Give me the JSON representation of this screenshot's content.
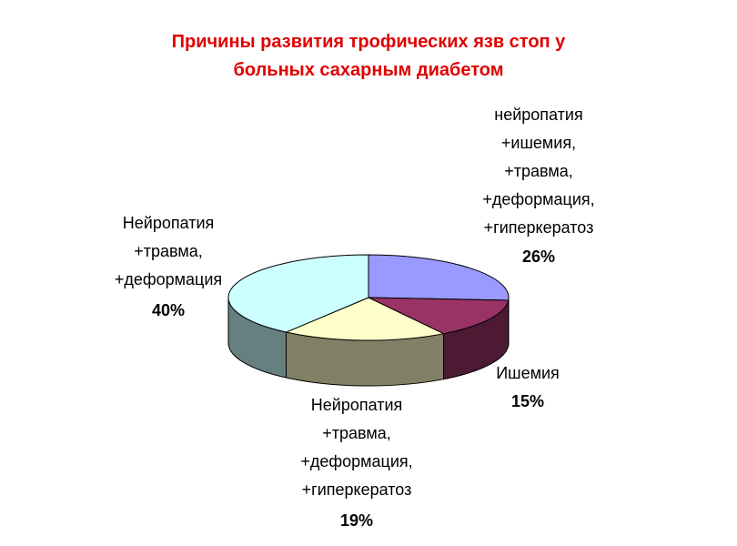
{
  "chart_data": {
    "type": "pie3d",
    "title": "Причины развития трофических язв стоп у\nбольных сахарным диабетом",
    "categories": [
      "нейропатия\n+ишемия,\n+травма,\n+деформация,\n+гиперкератоз",
      "Ишемия",
      "Нейропатия\n+травма,\n+деформация,\n+гиперкератоз",
      "Нейропатия\n+травма,\n+деформация"
    ],
    "values": [
      26,
      15,
      19,
      40
    ],
    "value_labels": [
      "26%",
      "15%",
      "19%",
      "40%"
    ],
    "colors": [
      "#9999ff",
      "#993366",
      "#ffffcc",
      "#ccffff"
    ],
    "side_colors": [
      "#66669a",
      "#4d1a33",
      "#808066",
      "#668080"
    ]
  }
}
